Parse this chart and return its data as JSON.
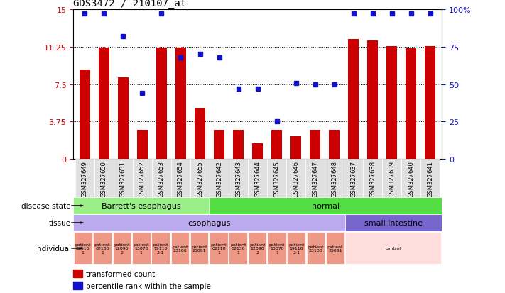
{
  "title": "GDS3472 / 210107_at",
  "samples": [
    "GSM327649",
    "GSM327650",
    "GSM327651",
    "GSM327652",
    "GSM327653",
    "GSM327654",
    "GSM327655",
    "GSM327642",
    "GSM327643",
    "GSM327644",
    "GSM327645",
    "GSM327646",
    "GSM327647",
    "GSM327648",
    "GSM327637",
    "GSM327638",
    "GSM327639",
    "GSM327640",
    "GSM327641"
  ],
  "bar_values": [
    9.0,
    11.2,
    8.2,
    2.9,
    11.15,
    11.2,
    5.1,
    2.9,
    2.9,
    1.6,
    2.9,
    2.3,
    2.9,
    2.9,
    12.0,
    11.9,
    11.3,
    11.1,
    11.3
  ],
  "dot_values": [
    97,
    97,
    82,
    44,
    97,
    68,
    70,
    68,
    47,
    47,
    25,
    51,
    50,
    50,
    97,
    97,
    97,
    97,
    97
  ],
  "bar_color": "#cc0000",
  "dot_color": "#1111cc",
  "yticks_left": [
    0,
    3.75,
    7.5,
    11.25,
    15
  ],
  "yticks_right": [
    0,
    25,
    50,
    75,
    100
  ],
  "ylim_left": [
    0,
    15
  ],
  "ylim_right": [
    0,
    100
  ],
  "disease_state_groups": [
    {
      "label": "Barrett's esophagus",
      "start": 0,
      "end": 7,
      "color": "#99ee88"
    },
    {
      "label": "normal",
      "start": 7,
      "end": 19,
      "color": "#55dd44"
    }
  ],
  "tissue_groups": [
    {
      "label": "esophagus",
      "start": 0,
      "end": 14,
      "color": "#bbaaee"
    },
    {
      "label": "small intestine",
      "start": 14,
      "end": 19,
      "color": "#7766cc"
    }
  ],
  "individual_groups": [
    {
      "label": "patient\n02110\n1",
      "start": 0,
      "end": 1,
      "color": "#ee9988"
    },
    {
      "label": "patient\n02130\n1",
      "start": 1,
      "end": 2,
      "color": "#ee9988"
    },
    {
      "label": "patient\n12090\n2",
      "start": 2,
      "end": 3,
      "color": "#ee9988"
    },
    {
      "label": "patient\n13070\n1",
      "start": 3,
      "end": 4,
      "color": "#ee9988"
    },
    {
      "label": "patient\n19110\n2-1",
      "start": 4,
      "end": 5,
      "color": "#ee9988"
    },
    {
      "label": "patient\n23100",
      "start": 5,
      "end": 6,
      "color": "#ee9988"
    },
    {
      "label": "patient\n25091",
      "start": 6,
      "end": 7,
      "color": "#ee9988"
    },
    {
      "label": "patient\n02110\n1",
      "start": 7,
      "end": 8,
      "color": "#ee9988"
    },
    {
      "label": "patient\n02130\n1",
      "start": 8,
      "end": 9,
      "color": "#ee9988"
    },
    {
      "label": "patient\n12090\n2",
      "start": 9,
      "end": 10,
      "color": "#ee9988"
    },
    {
      "label": "patient\n13070\n1",
      "start": 10,
      "end": 11,
      "color": "#ee9988"
    },
    {
      "label": "patient\n19110\n2-1",
      "start": 11,
      "end": 12,
      "color": "#ee9988"
    },
    {
      "label": "patient\n23100",
      "start": 12,
      "end": 13,
      "color": "#ee9988"
    },
    {
      "label": "patient\n25091",
      "start": 13,
      "end": 14,
      "color": "#ee9988"
    },
    {
      "label": "control",
      "start": 14,
      "end": 19,
      "color": "#ffdddd"
    }
  ],
  "legend": [
    {
      "label": "transformed count",
      "color": "#cc0000"
    },
    {
      "label": "percentile rank within the sample",
      "color": "#1111cc"
    }
  ],
  "bg_color": "#ffffff",
  "xtick_bg": "#e0e0e0"
}
